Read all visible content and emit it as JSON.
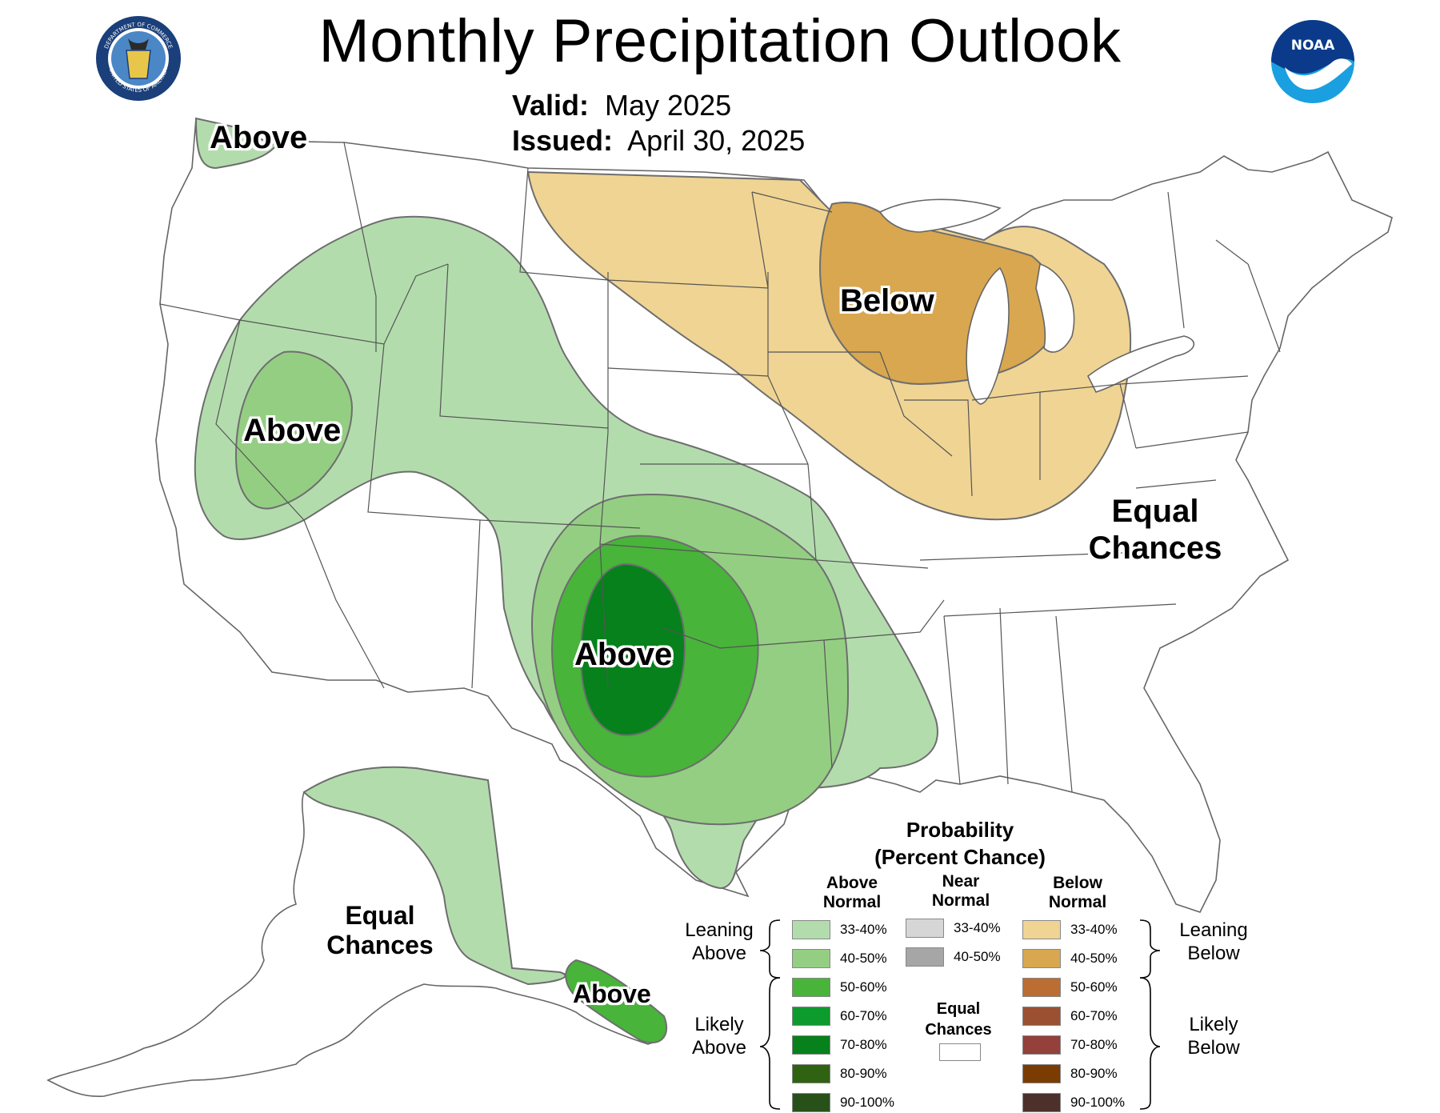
{
  "header": {
    "title": "Monthly Precipitation Outlook",
    "valid_label": "Valid:",
    "valid_value": "May 2025",
    "issued_label": "Issued:",
    "issued_value": "April 30, 2025"
  },
  "logos": {
    "left_name": "department-of-commerce-seal",
    "left_text_top": "DEPARTMENT OF COMMERCE",
    "left_text_bottom": "UNITED STATES OF AMERICA",
    "right_name": "noaa-logo",
    "right_text": "NOAA"
  },
  "map_labels": {
    "wa_above": "Above",
    "nv_above": "Above",
    "midwest_below": "Below",
    "east_equal_1": "Equal",
    "east_equal_2": "Chances",
    "southplains_above": "Above",
    "alaska_equal_1": "Equal",
    "alaska_equal_2": "Chances",
    "alaska_above": "Above"
  },
  "legend": {
    "title_1": "Probability",
    "title_2": "(Percent Chance)",
    "above_head_1": "Above",
    "above_head_2": "Normal",
    "near_head_1": "Near",
    "near_head_2": "Normal",
    "below_head_1": "Below",
    "below_head_2": "Normal",
    "leaning_above_1": "Leaning",
    "leaning_above_2": "Above",
    "likely_above_1": "Likely",
    "likely_above_2": "Above",
    "leaning_below_1": "Leaning",
    "leaning_below_2": "Below",
    "likely_below_1": "Likely",
    "likely_below_2": "Below",
    "equal_chances_1": "Equal",
    "equal_chances_2": "Chances",
    "above": [
      {
        "label": "33-40%",
        "color": "#b3dcad"
      },
      {
        "label": "40-50%",
        "color": "#94ce83"
      },
      {
        "label": "50-60%",
        "color": "#48b43a"
      },
      {
        "label": "60-70%",
        "color": "#0d9b2d"
      },
      {
        "label": "70-80%",
        "color": "#06811c"
      },
      {
        "label": "80-90%",
        "color": "#2f6211"
      },
      {
        "label": "90-100%",
        "color": "#28511a"
      }
    ],
    "near": [
      {
        "label": "33-40%",
        "color": "#d6d6d6"
      },
      {
        "label": "40-50%",
        "color": "#a6a6a6"
      }
    ],
    "below": [
      {
        "label": "33-40%",
        "color": "#f0d493"
      },
      {
        "label": "40-50%",
        "color": "#d8a750"
      },
      {
        "label": "50-60%",
        "color": "#bb6d33"
      },
      {
        "label": "60-70%",
        "color": "#9b5031"
      },
      {
        "label": "70-80%",
        "color": "#93413a"
      },
      {
        "label": "80-90%",
        "color": "#7b3c04"
      },
      {
        "label": "90-100%",
        "color": "#4d302a"
      }
    ],
    "equal_color": "#ffffff"
  },
  "colors": {
    "state_lines": "#555555",
    "region_outline": "#6e6e6e"
  }
}
